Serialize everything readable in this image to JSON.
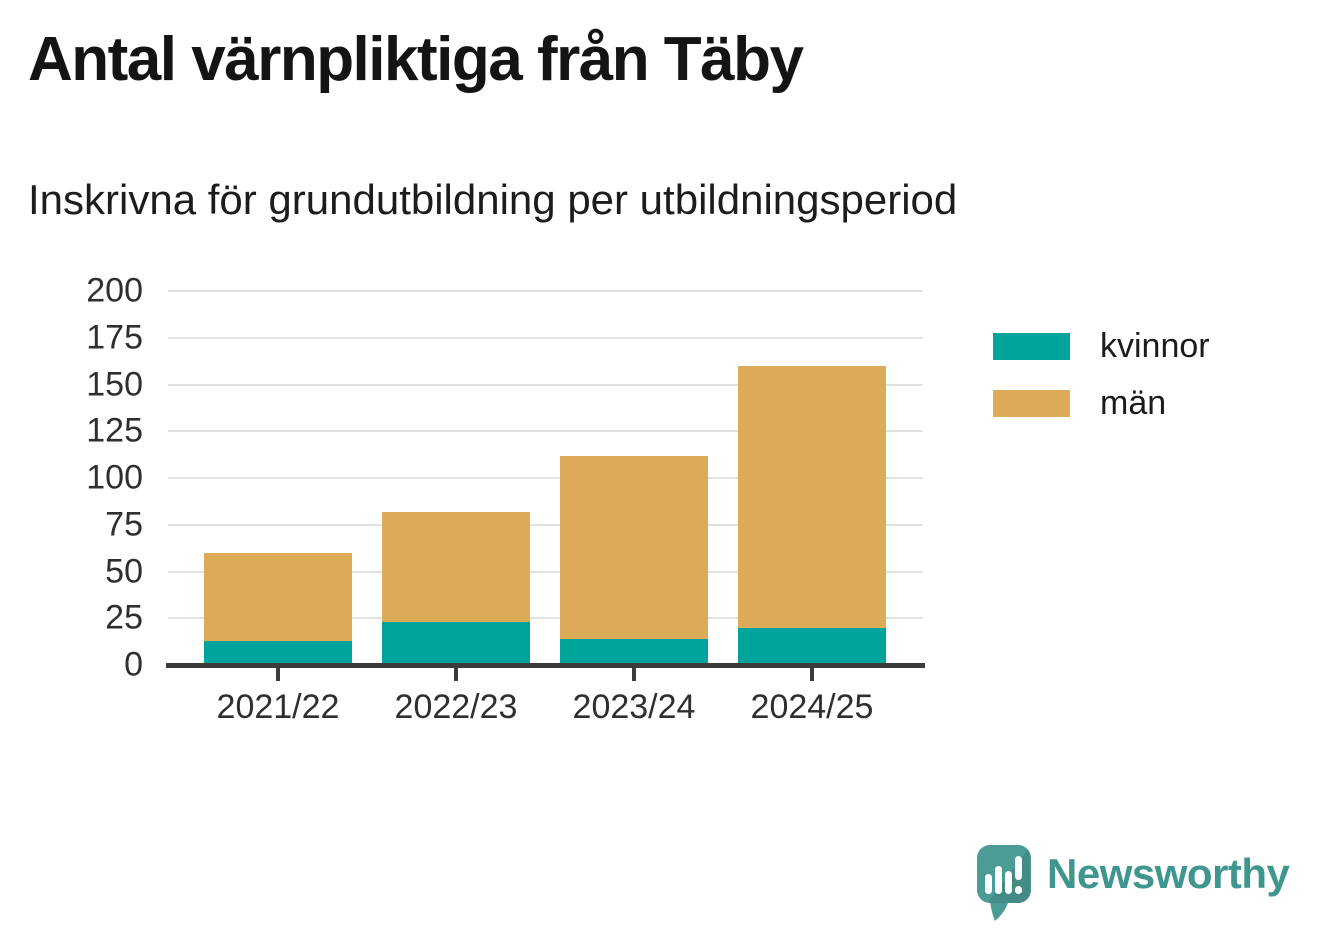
{
  "header": {
    "title": "Antal värnpliktiga från Täby",
    "subtitle": "Inskrivna för grundutbildning per utbildningsperiod"
  },
  "chart_data": {
    "type": "bar",
    "stacked": true,
    "title": "Antal värnpliktiga från Täby",
    "subtitle": "Inskrivna för grundutbildning per utbildningsperiod",
    "categories": [
      "2021/22",
      "2022/23",
      "2023/24",
      "2024/25"
    ],
    "series": [
      {
        "name": "kvinnor",
        "color": "#00a49c",
        "values": [
          13,
          23,
          14,
          20
        ]
      },
      {
        "name": "män",
        "color": "#dcab57",
        "values": [
          47,
          59,
          98,
          140
        ]
      }
    ],
    "stacked_totals": [
      60,
      82,
      112,
      160
    ],
    "xlabel": "",
    "ylabel": "",
    "ylim": [
      0,
      200
    ],
    "yticks": [
      0,
      25,
      50,
      75,
      100,
      125,
      150,
      175,
      200
    ],
    "grid": "horizontal",
    "legend_position": "right"
  },
  "legend": {
    "items": [
      {
        "label": "kvinnor",
        "color": "#00a49c"
      },
      {
        "label": "män",
        "color": "#dcab57"
      }
    ]
  },
  "footer": {
    "brand": "Newsworthy",
    "logo_icon": "speech-bubble-bar-chart-icon"
  },
  "colors": {
    "kvinnor": "#00a49c",
    "men": "#dcab57",
    "grid": "#e2e2e2",
    "axis": "#3b3b3b",
    "tick_label": "#2f2f2f",
    "title_text": "#141414",
    "brand_teal": "#3f968e",
    "logo_bubble": "#4a9c95"
  }
}
